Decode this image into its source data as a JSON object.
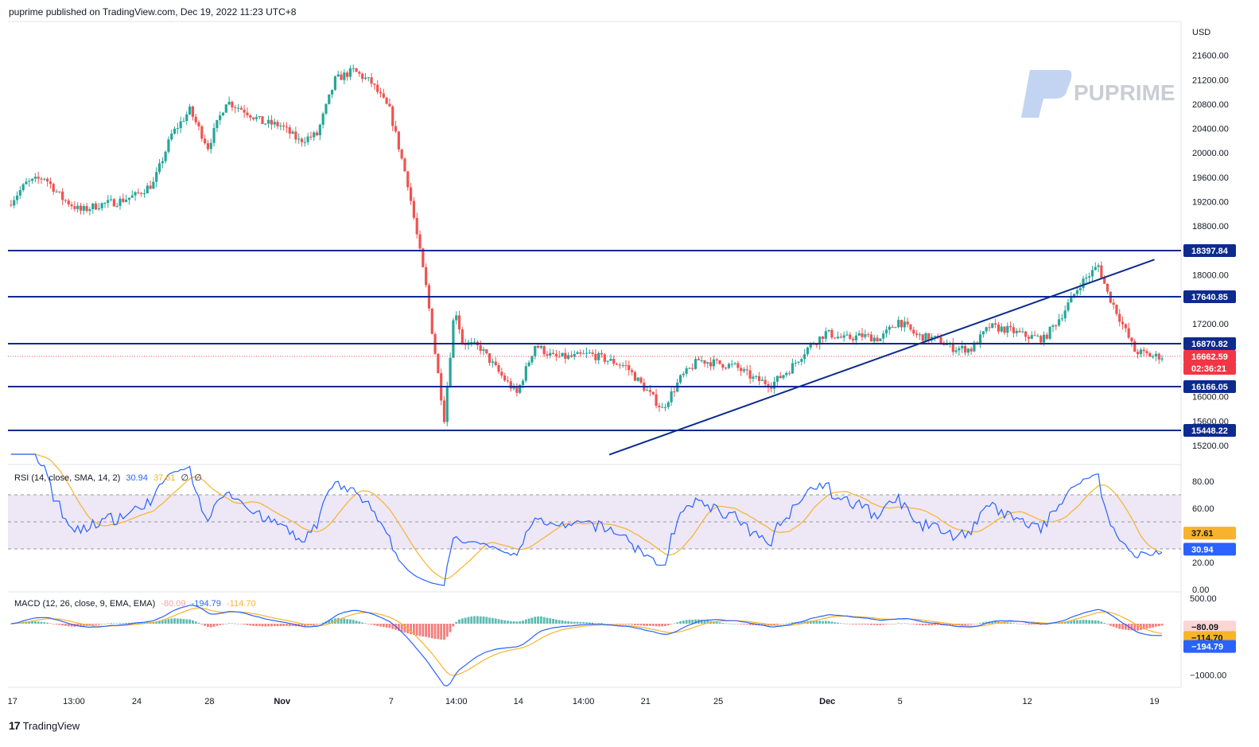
{
  "header": {
    "text": "puprime published on TradingView.com, Dec 19, 2022 11:23 UTC+8"
  },
  "watermark": {
    "text": "PUPRIME"
  },
  "footer": {
    "logo_glyph": "17",
    "brand": "TradingView"
  },
  "colors": {
    "up": "#26a69a",
    "down": "#ef5350",
    "level_line": "#0d2b8e",
    "trend_line": "#0d2b8e",
    "rsi_line": "#2962ff",
    "rsi_ma": "#f7b32b",
    "rsi_band": "#ede7f6",
    "macd_line": "#2962ff",
    "signal_line": "#f7b32b"
  },
  "price_axis": {
    "currency": "USD",
    "ticks": [
      "21600.00",
      "21200.00",
      "20800.00",
      "20400.00",
      "20000.00",
      "19600.00",
      "19200.00",
      "18800.00",
      "18000.00",
      "17200.00",
      "16000.00",
      "15600.00",
      "15200.00"
    ],
    "tags": [
      {
        "text": "18397.84",
        "value": 18397.84,
        "kind": "level"
      },
      {
        "text": "17640.85",
        "value": 17640.85,
        "kind": "level"
      },
      {
        "text": "16870.82",
        "value": 16870.82,
        "kind": "level"
      },
      {
        "text": "16662.59",
        "value": 16662.59,
        "kind": "price"
      },
      {
        "text": "02:36:21",
        "value": 16662.59,
        "kind": "countdown"
      },
      {
        "text": "16166.05",
        "value": 16166.05,
        "kind": "level"
      },
      {
        "text": "15448.22",
        "value": 15448.22,
        "kind": "level"
      }
    ]
  },
  "rsi": {
    "label": "RSI (14, close, SMA, 14, 2)",
    "value": "30.94",
    "ma_value": "37.61",
    "extra": [
      "∅",
      "∅"
    ],
    "ticks": [
      "80.00",
      "60.00",
      "40.00",
      "20.00",
      "0.00"
    ],
    "tags": [
      {
        "text": "37.61",
        "value": 37.61,
        "kind": "ma"
      },
      {
        "text": "30.94",
        "value": 30.94,
        "kind": "rsi"
      }
    ]
  },
  "macd": {
    "label": "MACD (12, 26, close, 9, EMA, EMA)",
    "hist_value": "-80.09",
    "macd_value": "-194.79",
    "signal_value": "-114.70",
    "ticks": [
      "500.00",
      "0.00",
      "−1000.00"
    ],
    "tags": [
      {
        "text": "−80.09",
        "value": -80.09,
        "kind": "hist"
      },
      {
        "text": "−114.70",
        "value": -114.7,
        "kind": "signal"
      },
      {
        "text": "−194.79",
        "value": -194.79,
        "kind": "macd"
      }
    ]
  },
  "time_axis": {
    "labels": [
      "17",
      "13:00",
      "24",
      "28",
      "Nov",
      "7",
      "14:00",
      "14",
      "14:00",
      "21",
      "25",
      "Dec",
      "5",
      "12",
      "19"
    ]
  },
  "chart_data": {
    "type": "candlestick",
    "symbol_currency": "USD",
    "levels": [
      18397.84,
      17640.85,
      16870.82,
      16166.05,
      15448.22
    ],
    "current_price": 16662.59,
    "trend_line": {
      "from": {
        "time": "Nov 19",
        "price": 15050
      },
      "to": {
        "time": "Dec 19",
        "price": 18250
      }
    },
    "close_path": [
      {
        "t": "Oct 17",
        "v": 19150
      },
      {
        "t": "Oct 18",
        "v": 19500
      },
      {
        "t": "Oct 19",
        "v": 19600
      },
      {
        "t": "Oct 20",
        "v": 19250
      },
      {
        "t": "Oct 21",
        "v": 19050
      },
      {
        "t": "Oct 22",
        "v": 19150
      },
      {
        "t": "Oct 23",
        "v": 19200
      },
      {
        "t": "Oct 24",
        "v": 19300
      },
      {
        "t": "Oct 25",
        "v": 19500
      },
      {
        "t": "Oct 26",
        "v": 20300
      },
      {
        "t": "Oct 27",
        "v": 20700
      },
      {
        "t": "Oct 28",
        "v": 20100
      },
      {
        "t": "Oct 29",
        "v": 20850
      },
      {
        "t": "Oct 30",
        "v": 20700
      },
      {
        "t": "Oct 31",
        "v": 20500
      },
      {
        "t": "Nov 1",
        "v": 20450
      },
      {
        "t": "Nov 2",
        "v": 20200
      },
      {
        "t": "Nov 3",
        "v": 20300
      },
      {
        "t": "Nov 4",
        "v": 21200
      },
      {
        "t": "Nov 5",
        "v": 21350
      },
      {
        "t": "Nov 6",
        "v": 21150
      },
      {
        "t": "Nov 7",
        "v": 20700
      },
      {
        "t": "Nov 8",
        "v": 19500
      },
      {
        "t": "Nov 9",
        "v": 17800
      },
      {
        "t": "Nov 10",
        "v": 15650
      },
      {
        "t": "Nov 10 14:00",
        "v": 17500
      },
      {
        "t": "Nov 11",
        "v": 16900
      },
      {
        "t": "Nov 12",
        "v": 16800
      },
      {
        "t": "Nov 13",
        "v": 16400
      },
      {
        "t": "Nov 14",
        "v": 16050
      },
      {
        "t": "Nov 15",
        "v": 16850
      },
      {
        "t": "Nov 16",
        "v": 16650
      },
      {
        "t": "Nov 17",
        "v": 16650
      },
      {
        "t": "Nov 18",
        "v": 16700
      },
      {
        "t": "Nov 19",
        "v": 16600
      },
      {
        "t": "Nov 20",
        "v": 16500
      },
      {
        "t": "Nov 21",
        "v": 16150
      },
      {
        "t": "Nov 22",
        "v": 15800
      },
      {
        "t": "Nov 23",
        "v": 16300
      },
      {
        "t": "Nov 24",
        "v": 16600
      },
      {
        "t": "Nov 25",
        "v": 16550
      },
      {
        "t": "Nov 26",
        "v": 16500
      },
      {
        "t": "Nov 27",
        "v": 16300
      },
      {
        "t": "Nov 28",
        "v": 16200
      },
      {
        "t": "Nov 29",
        "v": 16450
      },
      {
        "t": "Nov 30",
        "v": 16800
      },
      {
        "t": "Dec 1",
        "v": 17050
      },
      {
        "t": "Dec 2",
        "v": 16950
      },
      {
        "t": "Dec 3",
        "v": 17000
      },
      {
        "t": "Dec 4",
        "v": 16950
      },
      {
        "t": "Dec 5",
        "v": 17250
      },
      {
        "t": "Dec 6",
        "v": 17000
      },
      {
        "t": "Dec 7",
        "v": 16950
      },
      {
        "t": "Dec 8",
        "v": 16800
      },
      {
        "t": "Dec 9",
        "v": 16780
      },
      {
        "t": "Dec 10",
        "v": 17150
      },
      {
        "t": "Dec 11",
        "v": 17100
      },
      {
        "t": "Dec 12",
        "v": 17000
      },
      {
        "t": "Dec 13",
        "v": 16950
      },
      {
        "t": "Dec 14",
        "v": 17350
      },
      {
        "t": "Dec 15",
        "v": 17850
      },
      {
        "t": "Dec 16",
        "v": 18150
      },
      {
        "t": "Dec 16 12:00",
        "v": 17700
      },
      {
        "t": "Dec 17",
        "v": 17400
      },
      {
        "t": "Dec 18",
        "v": 16750
      },
      {
        "t": "Dec 19",
        "v": 16663
      }
    ]
  }
}
